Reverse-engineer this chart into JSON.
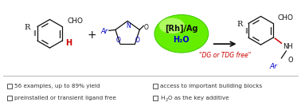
{
  "bg_color": "#ffffff",
  "bullet_items_left": [
    "56 examples, up to 89% yield",
    "preinstalled or transient ligand free"
  ],
  "bullet_items_right_1": "access to important building blocks",
  "figsize": [
    3.78,
    1.38
  ],
  "dpi": 100,
  "font_size_bullet": 5.2,
  "bullet_color": "#333333",
  "square_size": 0.01,
  "green_color_outer": "#66ee00",
  "green_color_inner": "#aaff44",
  "green_edge": "#44cc00",
  "rh_ag_text": "[Rh]/Ag",
  "h2o_text": "H₂O",
  "dg_free_text": "\"DG or TDG free\"",
  "arrow_color": "#333333",
  "red_color": "#cc0000",
  "blue_color": "#0000cc",
  "black_color": "#111111"
}
